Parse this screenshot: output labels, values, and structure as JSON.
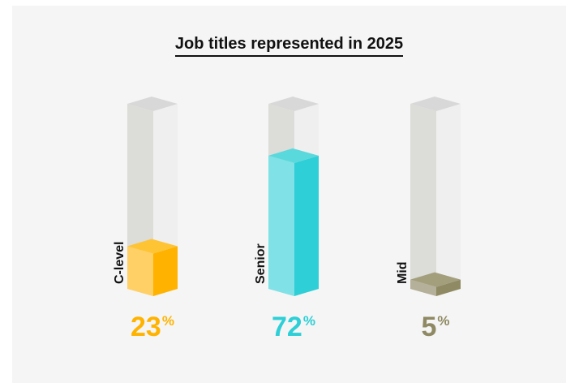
{
  "chart_data": {
    "type": "bar",
    "title": "Job titles represented in 2025",
    "categories": [
      "C-level",
      "Senior",
      "Mid"
    ],
    "values": [
      23,
      72,
      5
    ],
    "value_labels": [
      "23",
      "72",
      "5"
    ],
    "unit": "%",
    "ylim": [
      0,
      100
    ],
    "colors": {
      "C-level": {
        "front": "#ffd066",
        "side": "#ffb300",
        "top": "#ffc433",
        "text": "#ffb300"
      },
      "Senior": {
        "front": "#80e1e6",
        "side": "#2ecfd6",
        "top": "#5ad9dd",
        "text": "#2ecfd6"
      },
      "Mid": {
        "front": "#b5b099",
        "side": "#8f8a63",
        "top": "#a39e7c",
        "text": "#8f8a63"
      }
    },
    "track_colors": {
      "front": "#dcdcd8",
      "side": "#efefef",
      "top": "#d8d8d8"
    }
  }
}
